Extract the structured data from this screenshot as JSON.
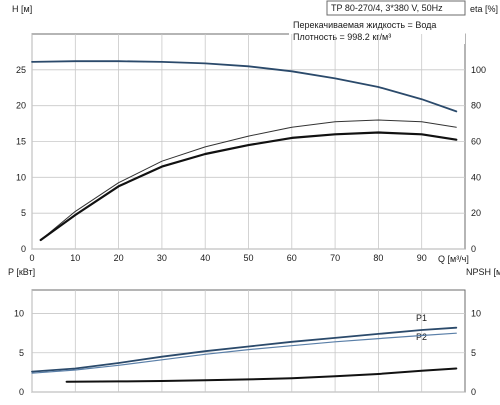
{
  "header": {
    "pump_label": "TP 80-270/4, 3*380 V, 50Hz",
    "liquid_line": "Перекачиваемая жидкость = Вода",
    "density_line": "Плотность = 998.2 кг/м³"
  },
  "colors": {
    "frame": "#6b6b6b",
    "grid": "#c8c8c8",
    "head": "#2b4a6b",
    "eta_main": "#111111",
    "eta_thin": "#333333",
    "p1": "#2b4a6b",
    "p2": "#5a7fa8",
    "npsh": "#111111"
  },
  "chart_data": [
    {
      "type": "line",
      "panel": "head-efficiency",
      "title": "TP 80-270/4, 3*380 V, 50Hz",
      "xlabel": "Q [м³/ч]",
      "ylabel": "H [м]",
      "y2label": "eta [%]",
      "xlim": [
        0,
        100
      ],
      "ylim": [
        0,
        30
      ],
      "y2lim": [
        0,
        120
      ],
      "grid": true,
      "x_ticks": [
        "0",
        "10",
        "20",
        "30",
        "40",
        "50",
        "60",
        "70",
        "80",
        "90"
      ],
      "x_tick_values": [
        0,
        10,
        20,
        30,
        40,
        50,
        60,
        70,
        80,
        90
      ],
      "y_ticks": [
        "0",
        "5",
        "10",
        "15",
        "20",
        "25"
      ],
      "y_tick_values": [
        0,
        5,
        10,
        15,
        20,
        25
      ],
      "y2_ticks": [
        "0",
        "20",
        "40",
        "60",
        "80",
        "100"
      ],
      "y2_tick_values": [
        0,
        20,
        40,
        60,
        80,
        100
      ],
      "series": [
        {
          "key": "head",
          "axis": "left",
          "x": [
            0,
            10,
            20,
            30,
            40,
            50,
            60,
            70,
            80,
            90,
            98
          ],
          "y": [
            26.1,
            26.2,
            26.2,
            26.1,
            25.9,
            25.5,
            24.8,
            23.8,
            22.6,
            20.9,
            19.2
          ]
        },
        {
          "key": "eta_thin",
          "axis": "right",
          "x": [
            2,
            10,
            20,
            30,
            40,
            50,
            60,
            70,
            80,
            90,
            98
          ],
          "y": [
            5,
            21,
            37,
            49,
            57,
            63,
            68,
            71,
            72,
            71,
            68
          ]
        },
        {
          "key": "eta_main",
          "axis": "right",
          "x": [
            2,
            10,
            20,
            30,
            40,
            50,
            60,
            70,
            80,
            90,
            98
          ],
          "y": [
            5,
            19,
            35,
            46,
            53,
            58,
            62,
            64,
            65,
            64,
            61
          ]
        }
      ]
    },
    {
      "type": "line",
      "panel": "power-npsh",
      "xlabel": "",
      "ylabel": "P [кВт]",
      "y2label": "NPSH [м]",
      "xlim": [
        0,
        100
      ],
      "ylim": [
        0,
        13
      ],
      "y2lim": [
        0,
        13
      ],
      "grid": true,
      "y_ticks": [
        "0",
        "5",
        "10"
      ],
      "y_tick_values": [
        0,
        5,
        10
      ],
      "y2_ticks": [
        "0",
        "5",
        "10"
      ],
      "y2_tick_values": [
        0,
        5,
        10
      ],
      "series": [
        {
          "name": "P1",
          "key": "p1",
          "axis": "left",
          "x": [
            0,
            10,
            20,
            30,
            40,
            50,
            60,
            70,
            80,
            90,
            98
          ],
          "y": [
            2.6,
            3.0,
            3.7,
            4.5,
            5.2,
            5.8,
            6.4,
            6.9,
            7.4,
            7.9,
            8.2
          ]
        },
        {
          "name": "P2",
          "key": "p2",
          "axis": "left",
          "x": [
            0,
            10,
            20,
            30,
            40,
            50,
            60,
            70,
            80,
            90,
            98
          ],
          "y": [
            2.4,
            2.8,
            3.4,
            4.1,
            4.8,
            5.4,
            5.9,
            6.4,
            6.8,
            7.2,
            7.5
          ]
        },
        {
          "key": "npsh",
          "axis": "right",
          "x": [
            8,
            20,
            30,
            40,
            50,
            60,
            70,
            80,
            90,
            98
          ],
          "y": [
            1.3,
            1.35,
            1.4,
            1.5,
            1.6,
            1.75,
            2.0,
            2.3,
            2.7,
            3.0
          ]
        }
      ]
    }
  ]
}
